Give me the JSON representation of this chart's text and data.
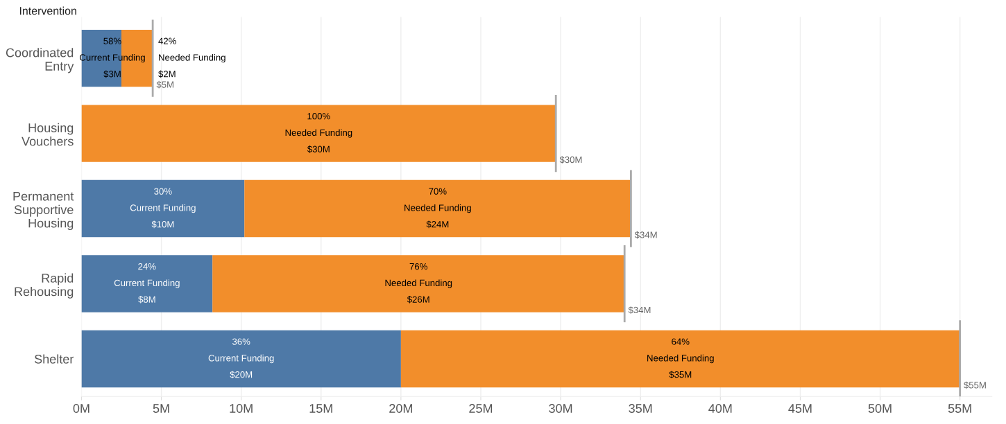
{
  "chart_data": {
    "type": "bar",
    "orientation": "horizontal",
    "stacked": true,
    "ylabel": "Intervention",
    "categories": [
      "Coordinated\nEntry",
      "Housing\nVouchers",
      "Permanent\nSupportive\nHousing",
      "Rapid\nRehousing",
      "Shelter"
    ],
    "series": [
      {
        "color": "#4e79a7",
        "values": [
          2.5,
          0,
          10.2,
          8.2,
          20.0
        ]
      },
      {
        "color": "#f28e2b",
        "values": [
          1.96,
          29.7,
          24.2,
          25.8,
          35.0
        ]
      }
    ],
    "annotations": [
      "58%\nCurrent Funding\n$3M",
      "42%\nNeeded Funding\n$2M",
      "100%\nNeeded Funding\n$30M",
      "30%\nCurrent Funding\n$10M",
      "70%\nNeeded Funding\n$24M",
      "24%\nCurrent Funding\n$8M",
      "76%\nNeeded Funding\n$26M",
      "36%\nCurrent Funding\n$20M",
      "64%\nNeeded Funding\n$35M"
    ],
    "totals": [
      "$5M",
      "$30M",
      "$34M",
      "$34M",
      "$55M"
    ],
    "xlim": [
      0,
      57
    ],
    "xticks": [
      {
        "value": 0,
        "label": "0M"
      },
      {
        "value": 5,
        "label": "5M"
      },
      {
        "value": 10,
        "label": "10M"
      },
      {
        "value": 15,
        "label": "15M"
      },
      {
        "value": 20,
        "label": "20M"
      },
      {
        "value": 25,
        "label": "25M"
      },
      {
        "value": 30,
        "label": "30M"
      },
      {
        "value": 35,
        "label": "35M"
      },
      {
        "value": 40,
        "label": "40M"
      },
      {
        "value": 45,
        "label": "45M"
      },
      {
        "value": 50,
        "label": "50M"
      },
      {
        "value": 55,
        "label": "55M"
      }
    ],
    "grid": "x",
    "legend": false
  }
}
